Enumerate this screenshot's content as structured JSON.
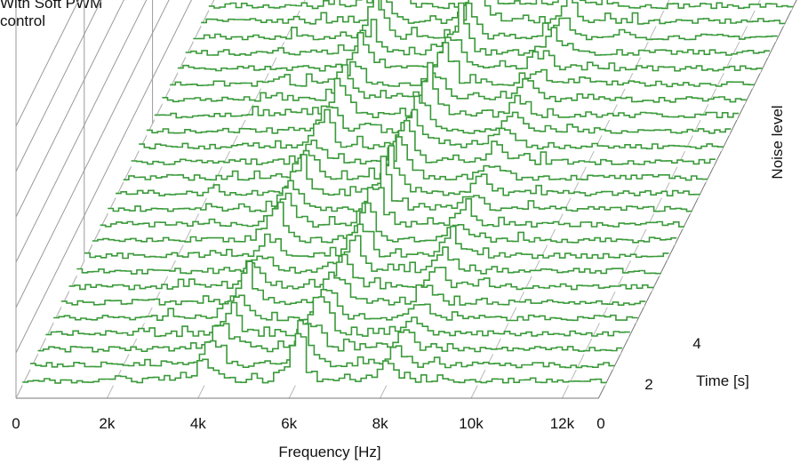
{
  "chart_data": {
    "type": "waterfall",
    "note": "With Soft PWM\ncontrol",
    "xlabel": "Frequency [Hz]",
    "ylabel": "Time [s]",
    "zlabel": "Noise level",
    "x_ticks": [
      "0",
      "2k",
      "4k",
      "6k",
      "8k",
      "10k",
      "12k"
    ],
    "y_ticks": [
      "0",
      "2",
      "4"
    ],
    "xlim": [
      0,
      12800
    ],
    "ylim": [
      0,
      5.5
    ],
    "grid": true,
    "series_color": "#3a9a3a",
    "peak_frequencies_hz": [
      4000,
      6000,
      8000
    ],
    "slice_count": 26
  }
}
